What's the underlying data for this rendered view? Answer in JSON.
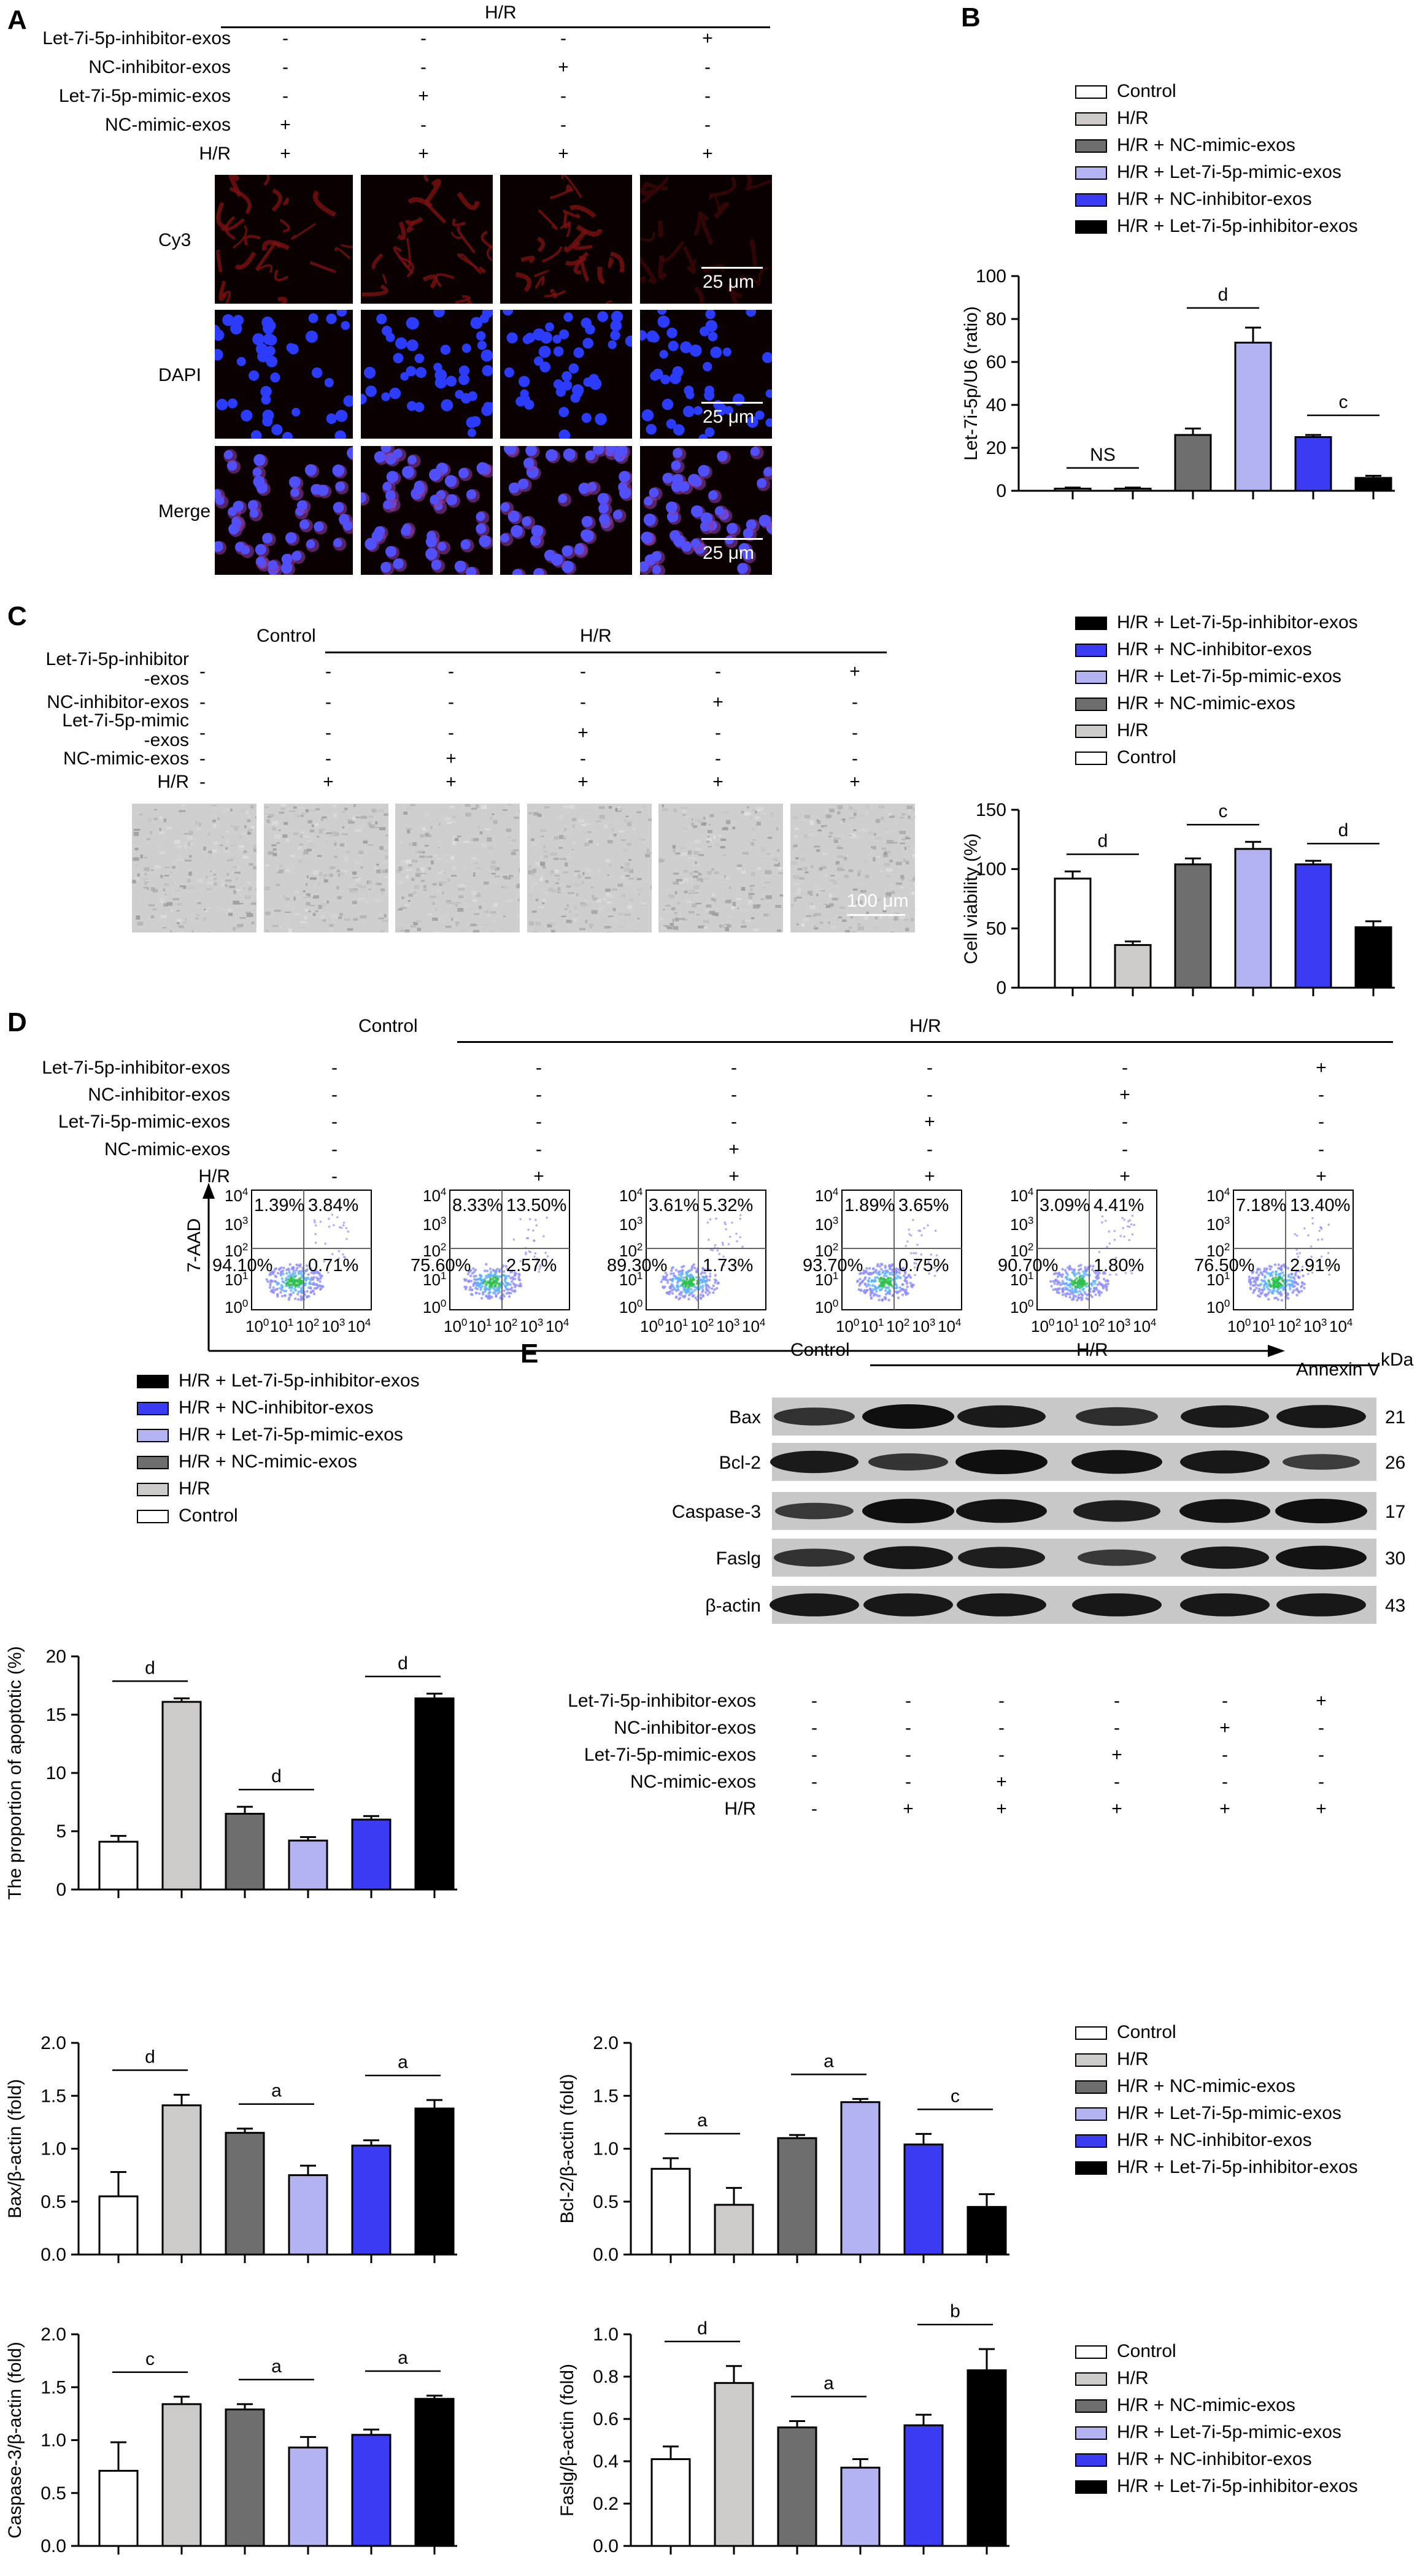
{
  "colors": {
    "control": "#ffffff",
    "hr": "#cfcaca",
    "nc_mimic": "#6e6e6e",
    "let7i_mimic": "#b3b3f2",
    "nc_inhibitor": "#3b3bf3",
    "let7i_inhibitor": "#000000"
  },
  "legend_labels": [
    "Control",
    "H/R",
    "H/R + NC-mimic-exos",
    "H/R + Let-7i-5p-mimic-exos",
    "H/R + NC-inhibitor-exos",
    "H/R + Let-7i-5p-inhibitor-exos"
  ],
  "panelA": {
    "letter": "A",
    "group_label": "H/R",
    "rows": [
      {
        "label": "Let-7i-5p-inhibitor-exos",
        "values": [
          "-",
          "-",
          "-",
          "+"
        ]
      },
      {
        "label": "NC-inhibitor-exos",
        "values": [
          "-",
          "-",
          "+",
          "-"
        ]
      },
      {
        "label": "Let-7i-5p-mimic-exos",
        "values": [
          "-",
          "+",
          "-",
          "-"
        ]
      },
      {
        "label": "NC-mimic-exos",
        "values": [
          "+",
          "-",
          "-",
          "-"
        ]
      },
      {
        "label": "H/R",
        "values": [
          "+",
          "+",
          "+",
          "+"
        ]
      }
    ],
    "image_rows": [
      "Cy3",
      "DAPI",
      "Merge"
    ],
    "scale_bar": "25 μm"
  },
  "panelB": {
    "letter": "B",
    "chart_data": {
      "type": "bar",
      "categories": [
        "Control",
        "H/R",
        "H/R + NC-mimic-exos",
        "H/R + Let-7i-5p-mimic-exos",
        "H/R + NC-inhibitor-exos",
        "H/R + Let-7i-5p-inhibitor-exos"
      ],
      "values": [
        1,
        1,
        26,
        69,
        25,
        6
      ],
      "errors": [
        0.5,
        0.5,
        3,
        7,
        1,
        1
      ],
      "ylabel": "Let-7i-5p/U6 (ratio)",
      "ylim": [
        0,
        100
      ],
      "yticks": [
        "0",
        "20",
        "40",
        "60",
        "80",
        "100"
      ],
      "sig": [
        {
          "from": 0,
          "to": 1,
          "text": "NS"
        },
        {
          "from": 2,
          "to": 3,
          "text": "d"
        },
        {
          "from": 4,
          "to": 5,
          "text": "c"
        }
      ]
    }
  },
  "panelC": {
    "letter": "C",
    "control_label": "Control",
    "group_label": "H/R",
    "rows": [
      {
        "label": "Let-7i-5p-inhibitor",
        "label2": "-exos",
        "values": [
          "-",
          "-",
          "-",
          "-",
          "-",
          "+"
        ]
      },
      {
        "label": "NC-inhibitor-exos",
        "values": [
          "-",
          "-",
          "-",
          "-",
          "+",
          "-"
        ]
      },
      {
        "label": "Let-7i-5p-mimic",
        "label2": "-exos",
        "values": [
          "-",
          "-",
          "-",
          "+",
          "-",
          "-"
        ]
      },
      {
        "label": "NC-mimic-exos",
        "values": [
          "-",
          "-",
          "+",
          "-",
          "-",
          "-"
        ]
      },
      {
        "label": "H/R",
        "values": [
          "-",
          "+",
          "+",
          "+",
          "+",
          "+"
        ]
      }
    ],
    "scale_bar": "100 μm",
    "chart_data": {
      "type": "bar",
      "categories": [
        "Control",
        "H/R",
        "H/R + NC-mimic-exos",
        "H/R + Let-7i-5p-mimic-exos",
        "H/R + NC-inhibitor-exos",
        "H/R + Let-7i-5p-inhibitor-exos"
      ],
      "values": [
        92,
        36,
        104,
        117,
        104,
        51
      ],
      "errors": [
        6,
        3,
        5,
        6,
        3,
        5
      ],
      "ylabel": "Cell viability (%)",
      "ylim": [
        0,
        150
      ],
      "yticks": [
        "0",
        "50",
        "100",
        "150"
      ],
      "sig": [
        {
          "from": 0,
          "to": 1,
          "text": "d"
        },
        {
          "from": 2,
          "to": 3,
          "text": "c"
        },
        {
          "from": 4,
          "to": 5,
          "text": "d"
        }
      ]
    }
  },
  "panelD": {
    "letter": "D",
    "control_label": "Control",
    "group_label": "H/R",
    "rows": [
      {
        "label": "Let-7i-5p-inhibitor-exos",
        "values": [
          "-",
          "-",
          "-",
          "-",
          "-",
          "+"
        ]
      },
      {
        "label": "NC-inhibitor-exos",
        "values": [
          "-",
          "-",
          "-",
          "-",
          "+",
          "-"
        ]
      },
      {
        "label": "Let-7i-5p-mimic-exos",
        "values": [
          "-",
          "-",
          "-",
          "+",
          "-",
          "-"
        ]
      },
      {
        "label": "NC-mimic-exos",
        "values": [
          "-",
          "-",
          "+",
          "-",
          "-",
          "-"
        ]
      },
      {
        "label": "H/R",
        "values": [
          "-",
          "+",
          "+",
          "+",
          "+",
          "+"
        ]
      }
    ],
    "flow_ylabel": "7-AAD",
    "flow_xlabel": "Annexin V",
    "decades": [
      "10",
      "10",
      "10",
      "10",
      "10"
    ],
    "exponents": [
      "0",
      "1",
      "2",
      "3",
      "4"
    ],
    "quadrants": [
      {
        "ul": "1.39%",
        "ur": "3.84%",
        "ll": "94.10%",
        "lr": "0.71%"
      },
      {
        "ul": "8.33%",
        "ur": "13.50%",
        "ll": "75.60%",
        "lr": "2.57%"
      },
      {
        "ul": "3.61%",
        "ur": "5.32%",
        "ll": "89.30%",
        "lr": "1.73%"
      },
      {
        "ul": "1.89%",
        "ur": "3.65%",
        "ll": "93.70%",
        "lr": "0.75%"
      },
      {
        "ul": "3.09%",
        "ur": "4.41%",
        "ll": "90.70%",
        "lr": "1.80%"
      },
      {
        "ul": "7.18%",
        "ur": "13.40%",
        "ll": "76.50%",
        "lr": "2.91%"
      }
    ],
    "chart_data": {
      "type": "bar",
      "categories": [
        "Control",
        "H/R",
        "H/R + NC-mimic-exos",
        "H/R + Let-7i-5p-mimic-exos",
        "H/R + NC-inhibitor-exos",
        "H/R + Let-7i-5p-inhibitor-exos"
      ],
      "values": [
        4.1,
        16.1,
        6.5,
        4.2,
        6.0,
        16.4
      ],
      "errors": [
        0.5,
        0.3,
        0.6,
        0.3,
        0.3,
        0.4
      ],
      "ylabel": "The proportion of apoptotic (%)",
      "ylim": [
        0,
        20
      ],
      "yticks": [
        "0",
        "5",
        "10",
        "15",
        "20"
      ],
      "sig": [
        {
          "from": 0,
          "to": 1,
          "text": "d"
        },
        {
          "from": 2,
          "to": 3,
          "text": "d"
        },
        {
          "from": 4,
          "to": 5,
          "text": "d"
        }
      ]
    }
  },
  "panelE": {
    "letter": "E",
    "control_label": "Control",
    "group_label": "H/R",
    "kda_label": "kDa",
    "bands": [
      {
        "name": "Bax",
        "kda": "21",
        "intensity": [
          0.55,
          1.0,
          0.85,
          0.6,
          0.85,
          0.9
        ]
      },
      {
        "name": "Bcl-2",
        "kda": "26",
        "intensity": [
          0.85,
          0.5,
          1.0,
          0.95,
          0.9,
          0.4
        ]
      },
      {
        "name": "Caspase-3",
        "kda": "17",
        "intensity": [
          0.45,
          1.0,
          0.95,
          0.8,
          0.95,
          1.0
        ]
      },
      {
        "name": "Faslg",
        "kda": "30",
        "intensity": [
          0.55,
          0.9,
          0.8,
          0.45,
          0.85,
          0.95
        ]
      },
      {
        "name": "β-actin",
        "kda": "43",
        "intensity": [
          0.9,
          0.9,
          0.9,
          0.9,
          0.9,
          0.9
        ]
      }
    ],
    "rows": [
      {
        "label": "Let-7i-5p-inhibitor-exos",
        "values": [
          "-",
          "-",
          "-",
          "-",
          "-",
          "+"
        ]
      },
      {
        "label": "NC-inhibitor-exos",
        "values": [
          "-",
          "-",
          "-",
          "-",
          "+",
          "-"
        ]
      },
      {
        "label": "Let-7i-5p-mimic-exos",
        "values": [
          "-",
          "-",
          "-",
          "+",
          "-",
          "-"
        ]
      },
      {
        "label": "NC-mimic-exos",
        "values": [
          "-",
          "-",
          "+",
          "-",
          "-",
          "-"
        ]
      },
      {
        "label": "H/R",
        "values": [
          "-",
          "+",
          "+",
          "+",
          "+",
          "+"
        ]
      }
    ]
  },
  "quantCharts": [
    {
      "type": "bar",
      "categories": [
        "Control",
        "H/R",
        "H/R + NC-mimic-exos",
        "H/R + Let-7i-5p-mimic-exos",
        "H/R + NC-inhibitor-exos",
        "H/R + Let-7i-5p-inhibitor-exos"
      ],
      "values": [
        0.55,
        1.41,
        1.15,
        0.75,
        1.03,
        1.38
      ],
      "errors": [
        0.23,
        0.1,
        0.04,
        0.09,
        0.05,
        0.08
      ],
      "ylabel": "Bax/β-actin (fold)",
      "ylim": [
        0,
        2.0
      ],
      "yticks": [
        "0.0",
        "0.5",
        "1.0",
        "1.5",
        "2.0"
      ],
      "sig": [
        {
          "from": 0,
          "to": 1,
          "text": "d"
        },
        {
          "from": 2,
          "to": 3,
          "text": "a"
        },
        {
          "from": 4,
          "to": 5,
          "text": "a"
        }
      ]
    },
    {
      "type": "bar",
      "categories": [
        "Control",
        "H/R",
        "H/R + NC-mimic-exos",
        "H/R + Let-7i-5p-mimic-exos",
        "H/R + NC-inhibitor-exos",
        "H/R + Let-7i-5p-inhibitor-exos"
      ],
      "values": [
        0.81,
        0.47,
        1.1,
        1.44,
        1.04,
        0.45
      ],
      "errors": [
        0.1,
        0.16,
        0.03,
        0.03,
        0.1,
        0.12
      ],
      "ylabel": "Bcl-2/β-actin (fold)",
      "ylim": [
        0,
        2.0
      ],
      "yticks": [
        "0.0",
        "0.5",
        "1.0",
        "1.5",
        "2.0"
      ],
      "sig": [
        {
          "from": 0,
          "to": 1,
          "text": "a"
        },
        {
          "from": 2,
          "to": 3,
          "text": "a"
        },
        {
          "from": 4,
          "to": 5,
          "text": "c"
        }
      ]
    },
    {
      "type": "bar",
      "categories": [
        "Control",
        "H/R",
        "H/R + NC-mimic-exos",
        "H/R + Let-7i-5p-mimic-exos",
        "H/R + NC-inhibitor-exos",
        "H/R + Let-7i-5p-inhibitor-exos"
      ],
      "values": [
        0.71,
        1.34,
        1.29,
        0.93,
        1.05,
        1.39
      ],
      "errors": [
        0.27,
        0.07,
        0.05,
        0.1,
        0.05,
        0.03
      ],
      "ylabel": "Caspase-3/β-actin (fold)",
      "ylim": [
        0,
        2.0
      ],
      "yticks": [
        "0.0",
        "0.5",
        "1.0",
        "1.5",
        "2.0"
      ],
      "sig": [
        {
          "from": 0,
          "to": 1,
          "text": "c"
        },
        {
          "from": 2,
          "to": 3,
          "text": "a"
        },
        {
          "from": 4,
          "to": 5,
          "text": "a"
        }
      ]
    },
    {
      "type": "bar",
      "categories": [
        "Control",
        "H/R",
        "H/R + NC-mimic-exos",
        "H/R + Let-7i-5p-mimic-exos",
        "H/R + NC-inhibitor-exos",
        "H/R + Let-7i-5p-inhibitor-exos"
      ],
      "values": [
        0.41,
        0.77,
        0.56,
        0.37,
        0.57,
        0.83
      ],
      "errors": [
        0.06,
        0.08,
        0.03,
        0.04,
        0.05,
        0.1
      ],
      "ylabel": "Faslg/β-actin (fold)",
      "ylim": [
        0,
        1.0
      ],
      "yticks": [
        "0.0",
        "0.2",
        "0.4",
        "0.6",
        "0.8",
        "1.0"
      ],
      "sig": [
        {
          "from": 0,
          "to": 1,
          "text": "d"
        },
        {
          "from": 2,
          "to": 3,
          "text": "a"
        },
        {
          "from": 4,
          "to": 5,
          "text": "b"
        }
      ]
    }
  ]
}
